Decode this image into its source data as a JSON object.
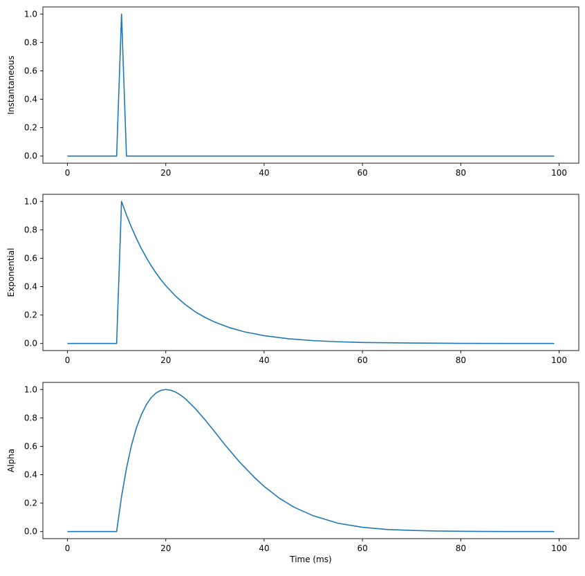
{
  "figure": {
    "background": "#ffffff",
    "line_color": "#1f77b4"
  },
  "chart_data": [
    {
      "type": "line",
      "ylabel": "Instantaneous",
      "xlabel": "",
      "xlim": [
        -5,
        104
      ],
      "ylim": [
        -0.05,
        1.05
      ],
      "xticks": [
        0,
        20,
        40,
        60,
        80,
        100
      ],
      "yticks": [
        0.0,
        0.2,
        0.4,
        0.6,
        0.8,
        1.0
      ],
      "series": [
        {
          "x": [
            0,
            10,
            11,
            12,
            99
          ],
          "y": [
            0,
            0,
            1,
            0,
            0
          ]
        }
      ]
    },
    {
      "type": "line",
      "ylabel": "Exponential",
      "xlabel": "",
      "xlim": [
        -5,
        104
      ],
      "ylim": [
        -0.05,
        1.05
      ],
      "xticks": [
        0,
        20,
        40,
        60,
        80,
        100
      ],
      "yticks": [
        0.0,
        0.2,
        0.4,
        0.6,
        0.8,
        1.0
      ],
      "series": [
        {
          "x": [
            0,
            10,
            11,
            12,
            13,
            14,
            15,
            16,
            17,
            18,
            19,
            20,
            22,
            24,
            26,
            28,
            30,
            33,
            36,
            40,
            45,
            50,
            55,
            60,
            65,
            70,
            80,
            90,
            99
          ],
          "y": [
            0,
            0,
            1.0,
            0.905,
            0.819,
            0.741,
            0.67,
            0.607,
            0.549,
            0.497,
            0.449,
            0.407,
            0.333,
            0.273,
            0.223,
            0.183,
            0.15,
            0.111,
            0.082,
            0.055,
            0.033,
            0.02,
            0.012,
            0.007,
            0.005,
            0.003,
            0.001,
            0.0,
            0.0
          ]
        }
      ]
    },
    {
      "type": "line",
      "ylabel": "Alpha",
      "xlabel": "Time (ms)",
      "xlim": [
        -5,
        104
      ],
      "ylim": [
        -0.05,
        1.05
      ],
      "xticks": [
        0,
        20,
        40,
        60,
        80,
        100
      ],
      "yticks": [
        0.0,
        0.2,
        0.4,
        0.6,
        0.8,
        1.0
      ],
      "series": [
        {
          "x": [
            0,
            10,
            11,
            12,
            13,
            14,
            15,
            16,
            17,
            18,
            19,
            20,
            21,
            22,
            23,
            24,
            26,
            28,
            30,
            32,
            35,
            38,
            40,
            43,
            46,
            50,
            55,
            60,
            65,
            70,
            75,
            80,
            85,
            90,
            95,
            99
          ],
          "y": [
            0,
            0,
            0.246,
            0.445,
            0.604,
            0.728,
            0.82,
            0.891,
            0.942,
            0.975,
            0.994,
            1.0,
            0.995,
            0.982,
            0.961,
            0.934,
            0.866,
            0.786,
            0.7,
            0.612,
            0.49,
            0.382,
            0.318,
            0.237,
            0.173,
            0.111,
            0.059,
            0.03,
            0.015,
            0.008,
            0.004,
            0.002,
            0.001,
            0.0,
            0.0,
            0.0
          ]
        }
      ]
    }
  ]
}
